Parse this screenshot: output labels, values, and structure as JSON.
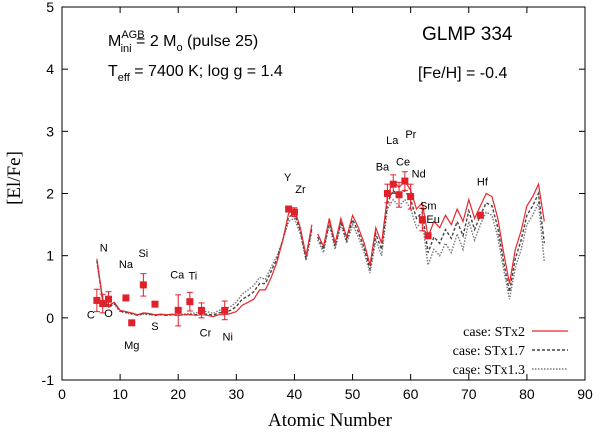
{
  "chart_data": {
    "type": "line",
    "xlabel": "Atomic Number",
    "ylabel": "[El/Fe]",
    "xlim": [
      0,
      90
    ],
    "ylim": [
      -1,
      5
    ],
    "xticks": [
      "0",
      "10",
      "20",
      "30",
      "40",
      "50",
      "60",
      "70",
      "80",
      "90"
    ],
    "yticks": [
      "-1",
      "0",
      "1",
      "2",
      "3",
      "4",
      "5"
    ],
    "annotations": {
      "mass_prefix": "M",
      "mass_sup": "AGB",
      "mass_sub": "ini",
      "mass_eq": " = 2 M",
      "mass_sun_sub": "o",
      "mass_pulse": " (pulse 25)",
      "teff_prefix": "T",
      "teff_sub": "eff",
      "teff_rest": " = 7400 K; log g = 1.4",
      "star_name": "GLMP 334",
      "metallicity": "[Fe/H] = -0.4"
    },
    "legend_position": "bottom-right",
    "series": [
      {
        "name": "case: STx2",
        "style": "solid",
        "color": "#e8282d",
        "points": [
          [
            6,
            0.95
          ],
          [
            7,
            0.3
          ],
          [
            8,
            0.2
          ],
          [
            9,
            0.25
          ],
          [
            10,
            0.12
          ],
          [
            11,
            0.1
          ],
          [
            12,
            0.08
          ],
          [
            13,
            0.05
          ],
          [
            14,
            0.08
          ],
          [
            15,
            0.07
          ],
          [
            16,
            0.05
          ],
          [
            17,
            0.06
          ],
          [
            18,
            0.05
          ],
          [
            19,
            0.06
          ],
          [
            20,
            0.04
          ],
          [
            21,
            0.05
          ],
          [
            22,
            0.05
          ],
          [
            23,
            0.04
          ],
          [
            24,
            0.05
          ],
          [
            25,
            0.04
          ],
          [
            26,
            0.02
          ],
          [
            27,
            0.05
          ],
          [
            28,
            0.05
          ],
          [
            29,
            0.07
          ],
          [
            30,
            0.1
          ],
          [
            31,
            0.2
          ],
          [
            32,
            0.25
          ],
          [
            33,
            0.3
          ],
          [
            34,
            0.45
          ],
          [
            35,
            0.45
          ],
          [
            36,
            0.65
          ],
          [
            37,
            0.9
          ],
          [
            38,
            1.25
          ],
          [
            39,
            1.68
          ],
          [
            40,
            1.75
          ],
          [
            41,
            1.45
          ],
          [
            42,
            1.0
          ],
          [
            43,
            1.5
          ],
          null,
          [
            44,
            1.35
          ],
          [
            45,
            1.15
          ],
          [
            46,
            1.6
          ],
          [
            47,
            1.2
          ],
          [
            48,
            1.6
          ],
          [
            49,
            1.3
          ],
          [
            50,
            1.65
          ],
          [
            51,
            1.45
          ],
          [
            52,
            1.2
          ],
          [
            53,
            0.85
          ],
          [
            54,
            1.45
          ],
          [
            55,
            1.2
          ],
          [
            56,
            1.95
          ],
          [
            57,
            2.2
          ],
          [
            58,
            2.1
          ],
          [
            59,
            2.2
          ],
          [
            60,
            2.05
          ],
          [
            61,
            1.75
          ],
          [
            62,
            1.85
          ],
          [
            63,
            1.3
          ],
          [
            64,
            1.55
          ],
          [
            65,
            1.45
          ],
          [
            66,
            1.65
          ],
          [
            67,
            1.5
          ],
          [
            68,
            1.75
          ],
          [
            69,
            1.55
          ],
          [
            70,
            1.9
          ],
          [
            71,
            1.6
          ],
          [
            72,
            1.8
          ],
          [
            73,
            2.0
          ],
          [
            74,
            1.95
          ],
          [
            75,
            1.6
          ],
          [
            76,
            1.05
          ],
          [
            77,
            0.55
          ],
          [
            78,
            1.1
          ],
          [
            79,
            1.4
          ],
          [
            80,
            1.8
          ],
          [
            81,
            1.95
          ],
          [
            82,
            2.15
          ],
          [
            83,
            1.55
          ]
        ]
      },
      {
        "name": "case: STx1.7",
        "style": "dashed",
        "color": "#444444",
        "points": [
          [
            6,
            0.92
          ],
          [
            7,
            0.28
          ],
          [
            8,
            0.18
          ],
          [
            9,
            0.23
          ],
          [
            10,
            0.11
          ],
          [
            11,
            0.09
          ],
          [
            12,
            0.07
          ],
          [
            13,
            0.04
          ],
          [
            14,
            0.07
          ],
          [
            15,
            0.06
          ],
          [
            16,
            0.04
          ],
          [
            17,
            0.05
          ],
          [
            18,
            0.04
          ],
          [
            19,
            0.05
          ],
          [
            20,
            0.04
          ],
          [
            21,
            0.05
          ],
          [
            22,
            0.05
          ],
          [
            23,
            0.05
          ],
          [
            24,
            0.06
          ],
          [
            25,
            0.06
          ],
          [
            26,
            0.04
          ],
          [
            27,
            0.08
          ],
          [
            28,
            0.09
          ],
          [
            29,
            0.12
          ],
          [
            30,
            0.18
          ],
          [
            31,
            0.3
          ],
          [
            32,
            0.35
          ],
          [
            33,
            0.42
          ],
          [
            34,
            0.55
          ],
          [
            35,
            0.55
          ],
          [
            36,
            0.75
          ],
          [
            37,
            0.95
          ],
          [
            38,
            1.25
          ],
          [
            39,
            1.62
          ],
          [
            40,
            1.68
          ],
          [
            41,
            1.4
          ],
          [
            42,
            0.95
          ],
          [
            43,
            1.45
          ],
          null,
          [
            44,
            1.3
          ],
          [
            45,
            1.1
          ],
          [
            46,
            1.55
          ],
          [
            47,
            1.15
          ],
          [
            48,
            1.55
          ],
          [
            49,
            1.25
          ],
          [
            50,
            1.58
          ],
          [
            51,
            1.38
          ],
          [
            52,
            1.12
          ],
          [
            53,
            0.78
          ],
          [
            54,
            1.35
          ],
          [
            55,
            1.1
          ],
          [
            56,
            1.85
          ],
          [
            57,
            2.05
          ],
          [
            58,
            1.95
          ],
          [
            59,
            2.05
          ],
          [
            60,
            1.9
          ],
          [
            61,
            1.6
          ],
          [
            62,
            1.7
          ],
          [
            63,
            1.05
          ],
          [
            64,
            1.3
          ],
          [
            65,
            1.2
          ],
          [
            66,
            1.42
          ],
          [
            67,
            1.28
          ],
          [
            68,
            1.55
          ],
          [
            69,
            1.32
          ],
          [
            70,
            1.72
          ],
          [
            71,
            1.42
          ],
          [
            72,
            1.65
          ],
          [
            73,
            1.85
          ],
          [
            74,
            1.8
          ],
          [
            75,
            1.45
          ],
          [
            76,
            0.9
          ],
          [
            77,
            0.42
          ],
          [
            78,
            0.95
          ],
          [
            79,
            1.25
          ],
          [
            80,
            1.65
          ],
          [
            81,
            1.8
          ],
          [
            82,
            2.0
          ],
          [
            83,
            1.2
          ]
        ]
      },
      {
        "name": "case: STx1.3",
        "style": "dotted",
        "color": "#777777",
        "points": [
          [
            6,
            0.9
          ],
          [
            7,
            0.27
          ],
          [
            8,
            0.17
          ],
          [
            9,
            0.22
          ],
          [
            10,
            0.1
          ],
          [
            11,
            0.08
          ],
          [
            12,
            0.06
          ],
          [
            13,
            0.04
          ],
          [
            14,
            0.06
          ],
          [
            15,
            0.05
          ],
          [
            16,
            0.04
          ],
          [
            17,
            0.05
          ],
          [
            18,
            0.04
          ],
          [
            19,
            0.05
          ],
          [
            20,
            0.04
          ],
          [
            21,
            0.06
          ],
          [
            22,
            0.07
          ],
          [
            23,
            0.08
          ],
          [
            24,
            0.1
          ],
          [
            25,
            0.1
          ],
          [
            26,
            0.07
          ],
          [
            27,
            0.12
          ],
          [
            28,
            0.14
          ],
          [
            29,
            0.18
          ],
          [
            30,
            0.25
          ],
          [
            31,
            0.38
          ],
          [
            32,
            0.45
          ],
          [
            33,
            0.52
          ],
          [
            34,
            0.65
          ],
          [
            35,
            0.62
          ],
          [
            36,
            0.82
          ],
          [
            37,
            1.0
          ],
          [
            38,
            1.25
          ],
          [
            39,
            1.55
          ],
          [
            40,
            1.6
          ],
          [
            41,
            1.35
          ],
          [
            42,
            0.92
          ],
          [
            43,
            1.4
          ],
          null,
          [
            44,
            1.25
          ],
          [
            45,
            1.05
          ],
          [
            46,
            1.5
          ],
          [
            47,
            1.1
          ],
          [
            48,
            1.5
          ],
          [
            49,
            1.2
          ],
          [
            50,
            1.5
          ],
          [
            51,
            1.3
          ],
          [
            52,
            1.05
          ],
          [
            53,
            0.72
          ],
          [
            54,
            1.25
          ],
          [
            55,
            1.0
          ],
          [
            56,
            1.75
          ],
          [
            57,
            1.9
          ],
          [
            58,
            1.8
          ],
          [
            59,
            1.9
          ],
          [
            60,
            1.75
          ],
          [
            61,
            1.45
          ],
          [
            62,
            1.55
          ],
          [
            63,
            0.85
          ],
          [
            64,
            1.1
          ],
          [
            65,
            1.0
          ],
          [
            66,
            1.2
          ],
          [
            67,
            1.05
          ],
          [
            68,
            1.35
          ],
          [
            69,
            1.1
          ],
          [
            70,
            1.55
          ],
          [
            71,
            1.25
          ],
          [
            72,
            1.5
          ],
          [
            73,
            1.7
          ],
          [
            74,
            1.65
          ],
          [
            75,
            1.3
          ],
          [
            76,
            0.78
          ],
          [
            77,
            0.3
          ],
          [
            78,
            0.8
          ],
          [
            79,
            1.1
          ],
          [
            80,
            1.5
          ],
          [
            81,
            1.65
          ],
          [
            82,
            1.85
          ],
          [
            83,
            0.9
          ]
        ]
      }
    ],
    "observations": {
      "color": "#e0202a",
      "points": [
        {
          "el": "C",
          "z": 6,
          "y": 0.28,
          "err": 0.18,
          "label_pos": "below"
        },
        {
          "el": "N",
          "z": 7,
          "y": 0.23,
          "err": 0.15,
          "label_pos": "above"
        },
        {
          "el": "O",
          "z": 8,
          "y": 0.3,
          "err": 0.12,
          "label_pos": "below"
        },
        {
          "el": "Na",
          "z": 11,
          "y": 0.32,
          "err": 0,
          "label_pos": "above"
        },
        {
          "el": "Mg",
          "z": 12,
          "y": -0.08,
          "err": 0,
          "label_pos": "below"
        },
        {
          "el": "Si",
          "z": 14,
          "y": 0.53,
          "err": 0.18,
          "label_pos": "above"
        },
        {
          "el": "S",
          "z": 16,
          "y": 0.22,
          "err": 0,
          "label_pos": "below"
        },
        {
          "el": "Ca",
          "z": 20,
          "y": 0.12,
          "err": 0.25,
          "label_pos": "above"
        },
        {
          "el": "Ti",
          "z": 22,
          "y": 0.26,
          "err": 0.15,
          "label_pos": "above"
        },
        {
          "el": "Cr",
          "z": 24,
          "y": 0.12,
          "err": 0.12,
          "label_pos": "below"
        },
        {
          "el": "Ni",
          "z": 28,
          "y": 0.12,
          "err": 0.15,
          "label_pos": "below"
        },
        {
          "el": "Y",
          "z": 39,
          "y": 1.75,
          "err": 0,
          "label_pos": "above"
        },
        {
          "el": "Zr",
          "z": 40,
          "y": 1.7,
          "err": 0.07,
          "label_pos": "above"
        },
        {
          "el": "Ba",
          "z": 56,
          "y": 2.0,
          "err": 0.15,
          "label_pos": "above"
        },
        {
          "el": "La",
          "z": 57,
          "y": 2.15,
          "err": 0.15,
          "label_pos": "above"
        },
        {
          "el": "Ce",
          "z": 58,
          "y": 1.98,
          "err": 0.2,
          "label_pos": "above"
        },
        {
          "el": "Pr",
          "z": 59,
          "y": 2.2,
          "err": 0.15,
          "label_pos": "above"
        },
        {
          "el": "Nd",
          "z": 60,
          "y": 1.95,
          "err": 0.2,
          "label_pos": "above"
        },
        {
          "el": "Sm",
          "z": 62,
          "y": 1.58,
          "err": 0.18,
          "label_pos": "above"
        },
        {
          "el": "Eu",
          "z": 63,
          "y": 1.32,
          "err": 0,
          "label_pos": "above"
        },
        {
          "el": "Hf",
          "z": 72,
          "y": 1.65,
          "err": 0,
          "label_pos": "above"
        }
      ]
    }
  }
}
